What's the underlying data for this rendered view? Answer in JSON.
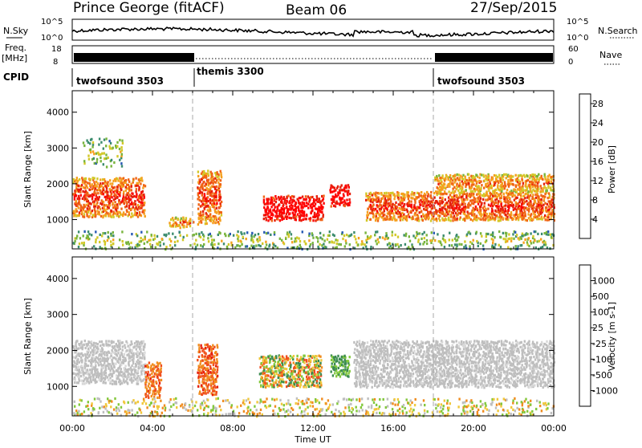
{
  "header": {
    "station": "Prince George (fitACF)",
    "beam": "Beam 06",
    "date": "27/Sep/2015"
  },
  "top_panels": {
    "nsky_label": "N.Sky",
    "nsky_ticks": [
      "10^5",
      "10^0"
    ],
    "nsearch_label": "N.Search",
    "nsearch_ticks": [
      "10^5",
      "10^0"
    ],
    "freq_label": "Freq.",
    "freq_unit": "[MHz]",
    "freq_ticks": [
      "18",
      "8"
    ],
    "nave_label": "Nave",
    "nave_ticks": [
      "60",
      "0"
    ],
    "cpid_label": "CPID",
    "cpid_segments": [
      {
        "name": "twofsound 3503",
        "start_hour": 0,
        "end_hour": 6
      },
      {
        "name": "themis 3300",
        "start_hour": 6,
        "end_hour": 18
      },
      {
        "name": "twofsound 3503",
        "start_hour": 18,
        "end_hour": 24
      }
    ]
  },
  "chart_data": [
    {
      "type": "heatmap",
      "ylabel": "Slant Range [km]",
      "xlabel": "Time UT",
      "x_ticks": [
        "00:00",
        "04:00",
        "08:00",
        "12:00",
        "16:00",
        "20:00",
        "00:00"
      ],
      "y_ticks": [
        "1000",
        "2000",
        "3000",
        "4000"
      ],
      "xlim_hours": [
        0,
        24
      ],
      "ylim_km": [
        180,
        4600
      ],
      "colorbar": {
        "label": "Power [dB]",
        "ticks": [
          "4",
          "8",
          "12",
          "16",
          "20",
          "24",
          "28"
        ],
        "range": [
          0,
          30
        ],
        "colors": [
          "#0a14e6",
          "#285ab4",
          "#3c8c6e",
          "#78b43c",
          "#d2c828",
          "#f5a01e",
          "#f06414",
          "#e61e0a",
          "#ff0000"
        ]
      },
      "mode_change_hours": [
        6,
        18
      ],
      "scatter_patches": [
        {
          "t0": 0.0,
          "t1": 3.6,
          "r0": 1100,
          "r1": 2200,
          "level": "high"
        },
        {
          "t0": 0.5,
          "t1": 2.5,
          "r0": 2500,
          "r1": 3300,
          "level": "low"
        },
        {
          "t0": 4.8,
          "t1": 6.0,
          "r0": 800,
          "r1": 1100,
          "level": "mid"
        },
        {
          "t0": 6.2,
          "t1": 7.4,
          "r0": 900,
          "r1": 2400,
          "level": "high"
        },
        {
          "t0": 9.5,
          "t1": 12.5,
          "r0": 1000,
          "r1": 1700,
          "level": "max"
        },
        {
          "t0": 12.8,
          "t1": 13.8,
          "r0": 1400,
          "r1": 2000,
          "level": "max"
        },
        {
          "t0": 14.6,
          "t1": 24.0,
          "r0": 1000,
          "r1": 1800,
          "level": "high"
        },
        {
          "t0": 18.0,
          "t1": 24.0,
          "r0": 1800,
          "r1": 2300,
          "level": "mid"
        },
        {
          "t0": 0.0,
          "t1": 24.0,
          "r0": 200,
          "r1": 700,
          "level": "low"
        }
      ]
    },
    {
      "type": "heatmap",
      "ylabel": "Slant Range [km]",
      "xlabel": "Time UT",
      "x_ticks": [
        "00:00",
        "04:00",
        "08:00",
        "12:00",
        "16:00",
        "20:00",
        "00:00"
      ],
      "y_ticks": [
        "1000",
        "2000",
        "3000",
        "4000"
      ],
      "xlim_hours": [
        0,
        24
      ],
      "ylim_km": [
        180,
        4600
      ],
      "colorbar": {
        "label": "Velocity [m s-1]",
        "ticks": [
          "1000",
          "500",
          "100",
          "25",
          "-25",
          "-100",
          "-500",
          "-1000"
        ],
        "colors": [
          "#2850c8",
          "#3c8c50",
          "#82c83c",
          "#bebebe",
          "#f0c83c",
          "#f08c1e",
          "#f0501e",
          "#e61e0a"
        ]
      },
      "mode_change_hours": [
        6,
        18
      ],
      "scatter_patches": [
        {
          "t0": 0.0,
          "t1": 3.6,
          "r0": 1100,
          "r1": 2300,
          "class": "ground"
        },
        {
          "t0": 3.6,
          "t1": 4.4,
          "r0": 700,
          "r1": 1700,
          "class": "negative"
        },
        {
          "t0": 6.2,
          "t1": 7.2,
          "r0": 800,
          "r1": 2200,
          "class": "negative"
        },
        {
          "t0": 9.3,
          "t1": 12.4,
          "r0": 1000,
          "r1": 1900,
          "class": "mixed"
        },
        {
          "t0": 12.8,
          "t1": 13.8,
          "r0": 1300,
          "r1": 1900,
          "class": "positive"
        },
        {
          "t0": 14.0,
          "t1": 24.0,
          "r0": 1000,
          "r1": 2300,
          "class": "ground"
        },
        {
          "t0": 0.0,
          "t1": 24.0,
          "r0": 200,
          "r1": 700,
          "class": "low"
        }
      ]
    }
  ]
}
